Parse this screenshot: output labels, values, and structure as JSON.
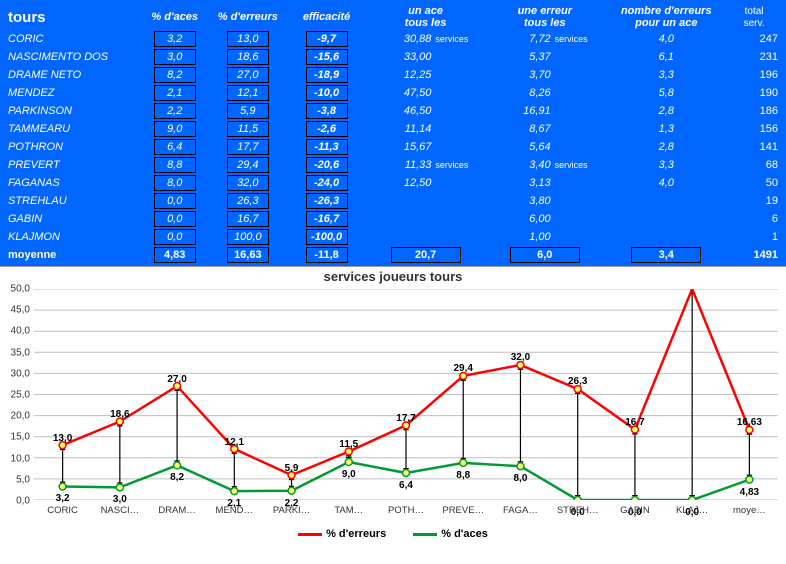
{
  "table": {
    "title": "tours",
    "headers": {
      "aces": "% d'aces",
      "errors": "% d'erreurs",
      "eff": "efficacité",
      "ace_per_l1": "un ace",
      "ace_per_l2": "tous les",
      "err_per_l1": "une erreur",
      "err_per_l2": "tous les",
      "err_ace_l1": "nombre d'erreurs",
      "err_ace_l2": "pour un ace",
      "total_l1": "total",
      "total_l2": "serv."
    },
    "svc_word": "services",
    "rows": [
      {
        "name": "CORIC",
        "aces": "3,2",
        "errors": "13,0",
        "eff": "-9,7",
        "ace_per": "30,88",
        "svc_a": true,
        "err_per": "7,72",
        "svc_b": true,
        "err_ace": "4,0",
        "total": "247"
      },
      {
        "name": "NASCIMENTO DOS",
        "aces": "3,0",
        "errors": "18,6",
        "eff": "-15,6",
        "ace_per": "33,00",
        "svc_a": false,
        "err_per": "5,37",
        "svc_b": false,
        "err_ace": "6,1",
        "total": "231"
      },
      {
        "name": "DRAME NETO",
        "aces": "8,2",
        "errors": "27,0",
        "eff": "-18,9",
        "ace_per": "12,25",
        "svc_a": false,
        "err_per": "3,70",
        "svc_b": false,
        "err_ace": "3,3",
        "total": "196"
      },
      {
        "name": "MENDEZ",
        "aces": "2,1",
        "errors": "12,1",
        "eff": "-10,0",
        "ace_per": "47,50",
        "svc_a": false,
        "err_per": "8,26",
        "svc_b": false,
        "err_ace": "5,8",
        "total": "190"
      },
      {
        "name": "PARKINSON",
        "aces": "2,2",
        "errors": "5,9",
        "eff": "-3,8",
        "ace_per": "46,50",
        "svc_a": false,
        "err_per": "16,91",
        "svc_b": false,
        "err_ace": "2,8",
        "total": "186"
      },
      {
        "name": "TAMMEARU",
        "aces": "9,0",
        "errors": "11,5",
        "eff": "-2,6",
        "ace_per": "11,14",
        "svc_a": false,
        "err_per": "8,67",
        "svc_b": false,
        "err_ace": "1,3",
        "total": "156"
      },
      {
        "name": "POTHRON",
        "aces": "6,4",
        "errors": "17,7",
        "eff": "-11,3",
        "ace_per": "15,67",
        "svc_a": false,
        "err_per": "5,64",
        "svc_b": false,
        "err_ace": "2,8",
        "total": "141"
      },
      {
        "name": "PREVERT",
        "aces": "8,8",
        "errors": "29,4",
        "eff": "-20,6",
        "ace_per": "11,33",
        "svc_a": true,
        "err_per": "3,40",
        "svc_b": true,
        "err_ace": "3,3",
        "total": "68"
      },
      {
        "name": "FAGANAS",
        "aces": "8,0",
        "errors": "32,0",
        "eff": "-24,0",
        "ace_per": "12,50",
        "svc_a": false,
        "err_per": "3,13",
        "svc_b": false,
        "err_ace": "4,0",
        "total": "50"
      },
      {
        "name": "STREHLAU",
        "aces": "0,0",
        "errors": "26,3",
        "eff": "-26,3",
        "ace_per": "",
        "svc_a": false,
        "err_per": "3,80",
        "svc_b": false,
        "err_ace": "",
        "total": "19"
      },
      {
        "name": "GABIN",
        "aces": "0,0",
        "errors": "16,7",
        "eff": "-16,7",
        "ace_per": "",
        "svc_a": false,
        "err_per": "6,00",
        "svc_b": false,
        "err_ace": "",
        "total": "6"
      },
      {
        "name": "KLAJMON",
        "aces": "0,0",
        "errors": "100,0",
        "eff": "-100,0",
        "ace_per": "",
        "svc_a": false,
        "err_per": "1,00",
        "svc_b": false,
        "err_ace": "",
        "total": "1"
      }
    ],
    "avg": {
      "name": "moyenne",
      "aces": "4,83",
      "errors": "16,63",
      "eff": "-11,8",
      "ace_per": "20,7",
      "err_per": "6,0",
      "err_ace": "3,4",
      "total": "1491"
    },
    "colors": {
      "bg": "#0066ff",
      "text": "#ffffff",
      "box_border": "#000000"
    }
  },
  "chart": {
    "title": "services joueurs tours",
    "ylim": [
      0,
      50
    ],
    "ytick_step": 5,
    "grid_color": "#bfbfbf",
    "colors": {
      "errors": "#ff0000",
      "aces": "#009933",
      "marker_fill": "#ffff66",
      "arrow": "#000000"
    },
    "line_width": 2.5,
    "marker_radius": 3.5,
    "categories": [
      "CORIC",
      "NASCI…",
      "DRAM…",
      "MEND…",
      "PARKI…",
      "TAM…",
      "POTH…",
      "PREVE…",
      "FAGA…",
      "STREH…",
      "GABIN",
      "KLAJ…",
      "moye…"
    ],
    "series": {
      "errors": {
        "label": "% d'erreurs",
        "values": [
          13.0,
          18.6,
          27.0,
          12.1,
          5.9,
          11.5,
          17.7,
          29.4,
          32.0,
          26.3,
          16.7,
          100.0,
          16.63
        ]
      },
      "aces": {
        "label": "% d'aces",
        "values": [
          3.2,
          3.0,
          8.2,
          2.1,
          2.2,
          9.0,
          6.4,
          8.8,
          8.0,
          0.0,
          0.0,
          0.0,
          4.83
        ]
      }
    },
    "point_labels": {
      "errors": [
        "13,0",
        "18,6",
        "27,0",
        "12,1",
        "5,9",
        "11,5",
        "17,7",
        "29,4",
        "32,0",
        "26,3",
        "16,7",
        "",
        "16,63"
      ],
      "aces": [
        "3,2",
        "3,0",
        "8,2",
        "2,1",
        "2,2",
        "9,0",
        "6,4",
        "8,8",
        "8,0",
        "0,0",
        "0,0",
        "0,0",
        "4,83"
      ]
    }
  }
}
